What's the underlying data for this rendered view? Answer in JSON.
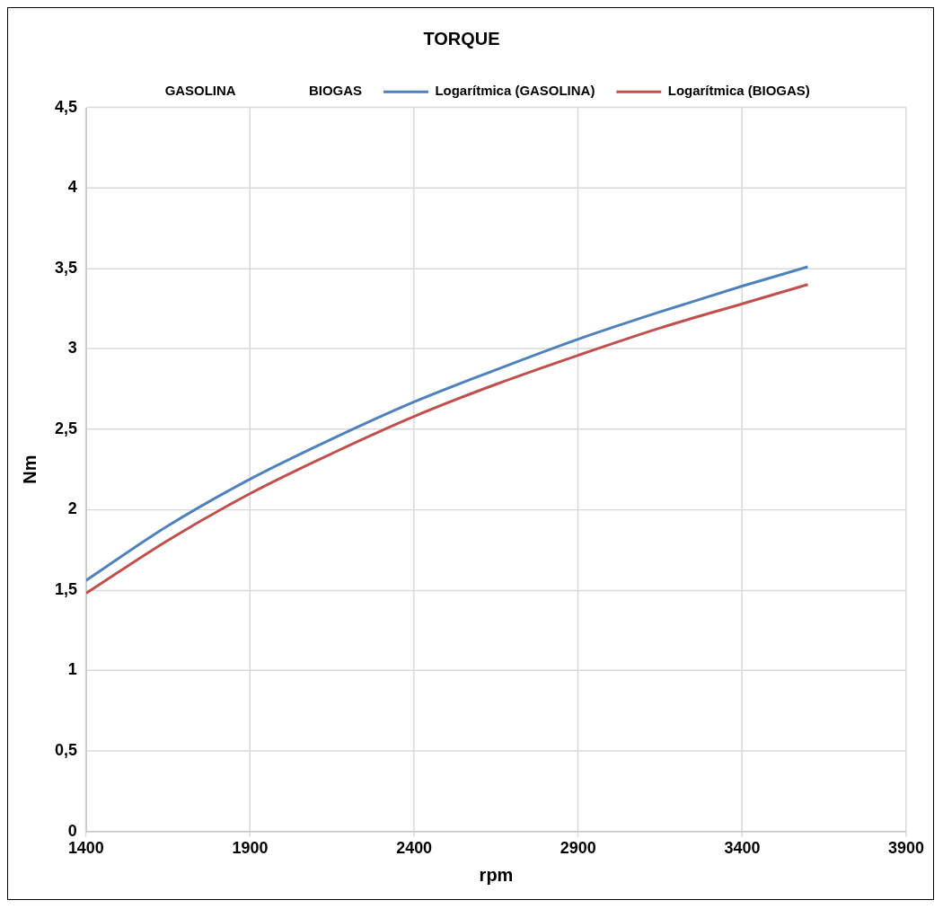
{
  "chart_data": {
    "type": "line",
    "title": "TORQUE",
    "xlabel": "rpm",
    "ylabel": "Nm",
    "x": [
      1400,
      1650,
      1900,
      2150,
      2400,
      2650,
      2900,
      3150,
      3400,
      3600
    ],
    "series": [
      {
        "name": "GASOLINA",
        "values": [
          null,
          null,
          null,
          null,
          null,
          null,
          null,
          null,
          null,
          null
        ]
      },
      {
        "name": "BIOGAS",
        "values": [
          null,
          null,
          null,
          null,
          null,
          null,
          null,
          null,
          null,
          null
        ]
      },
      {
        "name": "Logarítmica (GASOLINA)",
        "color": "#4f81bd",
        "values": [
          1.56,
          1.9,
          2.19,
          2.44,
          2.67,
          2.87,
          3.06,
          3.23,
          3.39,
          3.51
        ]
      },
      {
        "name": "Logarítmica (BIOGAS)",
        "color": "#c0504d",
        "values": [
          1.48,
          1.81,
          2.1,
          2.35,
          2.58,
          2.78,
          2.96,
          3.13,
          3.28,
          3.4
        ]
      }
    ],
    "xlim": [
      1400,
      3900
    ],
    "xticks": [
      1400,
      1900,
      2400,
      2900,
      3400,
      3900
    ],
    "ylim": [
      0,
      4.5
    ],
    "yticks": [
      0,
      {
        "value": 0.5,
        "label": "0,5"
      },
      1,
      {
        "value": 1.5,
        "label": "1,5"
      },
      2,
      {
        "value": 2.5,
        "label": "2,5"
      },
      3,
      {
        "value": 3.5,
        "label": "3,5"
      },
      4,
      {
        "value": 4.5,
        "label": "4,5"
      }
    ],
    "grid": true,
    "legend": "top",
    "line_style": "solid"
  }
}
